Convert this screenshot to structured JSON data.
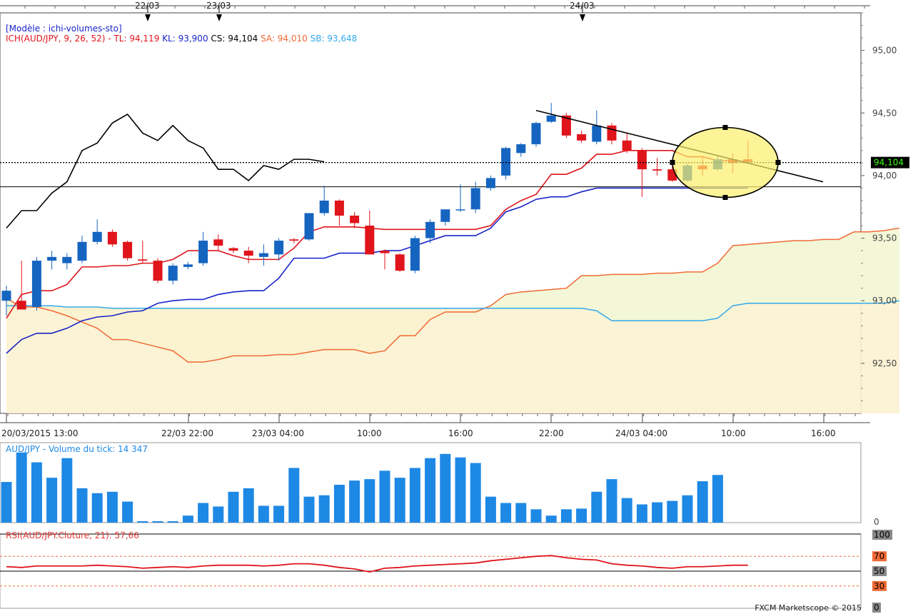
{
  "header": {
    "model": "[Modèle : ichi-volumes-sto]",
    "ich_name": "ICH(AUD/JPY, 9, 26, 52) -",
    "tl": "TL: 94,119",
    "kl": "KL: 93,900",
    "cs": "CS: 94,104",
    "sa": "SA: 94,010",
    "sb": "SB: 93,648"
  },
  "colors": {
    "up_candle": "#1565c0",
    "down_candle": "#e0141b",
    "tenkan": "#e0141b",
    "kijun": "#1a23c8",
    "chikou": "#000000",
    "senkou_a": "#f06a35",
    "senkou_b": "#33aaee",
    "cloud_bull": "#f3f7d7",
    "cloud_bear": "#fbf2d0",
    "volume": "#1e88e5",
    "rsi": "#e0141b",
    "highlight": "#fcef6b"
  },
  "date_markers": [
    "22/03",
    "23/03",
    "24/03"
  ],
  "time_labels": [
    "20/03/2015 13:00",
    "22/03 22:00",
    "23/03 04:00",
    "10:00",
    "16:00",
    "22:00",
    "24/03 04:00",
    "10:00",
    "16:00"
  ],
  "price_axis": [
    "95,00",
    "94,50",
    "94,00",
    "93,50",
    "93,00",
    "92,50"
  ],
  "current_price_label": "94,104",
  "volume_header": "AUD/JPY - Volume du tick: 14 347",
  "volume_axis_zero": "0",
  "rsi_header": "RSI(AUD/JPY.Cloture, 21): 57,66",
  "rsi_axis": [
    "100",
    "70",
    "50",
    "30",
    "0"
  ],
  "brand": "FXCM Marketscope © 2015",
  "chart_data": [
    {
      "type": "candlestick",
      "title": "ICH(AUD/JPY, 9, 26, 52)",
      "ylim": [
        92.1,
        95.3
      ],
      "candles": [
        [
          93.0,
          93.12,
          92.88,
          93.08
        ],
        [
          93.0,
          93.32,
          92.93,
          92.93
        ],
        [
          92.95,
          93.35,
          92.92,
          93.32
        ],
        [
          93.32,
          93.4,
          93.25,
          93.35
        ],
        [
          93.3,
          93.38,
          93.25,
          93.35
        ],
        [
          93.32,
          93.52,
          93.3,
          93.47
        ],
        [
          93.47,
          93.65,
          93.45,
          93.55
        ],
        [
          93.55,
          93.57,
          93.43,
          93.45
        ],
        [
          93.47,
          93.48,
          93.32,
          93.34
        ],
        [
          93.33,
          93.48,
          93.3,
          93.32
        ],
        [
          93.32,
          93.34,
          93.14,
          93.16
        ],
        [
          93.16,
          93.3,
          93.13,
          93.28
        ],
        [
          93.27,
          93.31,
          93.25,
          93.29
        ],
        [
          93.3,
          93.55,
          93.28,
          93.48
        ],
        [
          93.49,
          93.53,
          93.4,
          93.44
        ],
        [
          93.42,
          93.43,
          93.38,
          93.4
        ],
        [
          93.4,
          93.43,
          93.3,
          93.36
        ],
        [
          93.35,
          93.45,
          93.28,
          93.38
        ],
        [
          93.37,
          93.5,
          93.32,
          93.48
        ],
        [
          93.49,
          93.5,
          93.46,
          93.48
        ],
        [
          93.49,
          93.7,
          93.48,
          93.7
        ],
        [
          93.7,
          93.92,
          93.68,
          93.8
        ],
        [
          93.8,
          93.81,
          93.6,
          93.68
        ],
        [
          93.68,
          93.71,
          93.58,
          93.62
        ],
        [
          93.6,
          93.72,
          93.4,
          93.37
        ],
        [
          93.4,
          93.41,
          93.25,
          93.38
        ],
        [
          93.37,
          93.38,
          93.23,
          93.24
        ],
        [
          93.24,
          93.52,
          93.22,
          93.5
        ],
        [
          93.5,
          93.65,
          93.46,
          93.63
        ],
        [
          93.63,
          93.73,
          93.6,
          93.73
        ],
        [
          93.73,
          93.93,
          93.71,
          93.73
        ],
        [
          93.73,
          93.95,
          93.7,
          93.9
        ],
        [
          93.9,
          94.0,
          93.88,
          93.98
        ],
        [
          94.0,
          94.23,
          93.97,
          94.22
        ],
        [
          94.18,
          94.26,
          94.15,
          94.25
        ],
        [
          94.25,
          94.43,
          94.23,
          94.42
        ],
        [
          94.43,
          94.58,
          94.42,
          94.48
        ],
        [
          94.48,
          94.5,
          94.3,
          94.32
        ],
        [
          94.33,
          94.36,
          94.26,
          94.28
        ],
        [
          94.27,
          94.52,
          94.25,
          94.4
        ],
        [
          94.4,
          94.42,
          94.25,
          94.28
        ],
        [
          94.28,
          94.34,
          94.18,
          94.2
        ],
        [
          94.2,
          94.22,
          93.83,
          94.05
        ],
        [
          94.05,
          94.14,
          94.0,
          94.04
        ],
        [
          94.05,
          94.08,
          93.95,
          93.96
        ],
        [
          93.96,
          94.1,
          93.95,
          94.08
        ],
        [
          94.08,
          94.15,
          94.0,
          94.05
        ],
        [
          94.05,
          94.16,
          94.04,
          94.13
        ],
        [
          94.13,
          94.18,
          94.02,
          94.1
        ],
        [
          94.13,
          94.28,
          94.1,
          94.11
        ]
      ],
      "tenkan": [
        92.86,
        93.05,
        93.08,
        93.08,
        93.13,
        93.27,
        93.27,
        93.28,
        93.28,
        93.3,
        93.3,
        93.33,
        93.4,
        93.4,
        93.4,
        93.36,
        93.33,
        93.33,
        93.33,
        93.42,
        93.55,
        93.59,
        93.59,
        93.59,
        93.58,
        93.57,
        93.57,
        93.57,
        93.57,
        93.57,
        93.57,
        93.57,
        93.6,
        93.73,
        93.8,
        93.85,
        94.01,
        94.01,
        94.06,
        94.17,
        94.17,
        94.2,
        94.2,
        94.2,
        94.2,
        94.15,
        94.15,
        94.12,
        94.12,
        94.11
      ],
      "kijun": [
        92.58,
        92.69,
        92.74,
        92.74,
        92.78,
        92.84,
        92.87,
        92.88,
        92.91,
        92.92,
        92.98,
        93.0,
        93.01,
        93.01,
        93.05,
        93.07,
        93.08,
        93.08,
        93.18,
        93.34,
        93.34,
        93.34,
        93.38,
        93.38,
        93.38,
        93.4,
        93.4,
        93.44,
        93.48,
        93.52,
        93.52,
        93.52,
        93.58,
        93.71,
        93.75,
        93.81,
        93.83,
        93.83,
        93.87,
        93.9,
        93.9,
        93.9,
        93.9,
        93.9,
        93.9,
        93.9,
        93.9,
        93.9,
        93.9,
        93.9
      ],
      "chikou": [
        93.58,
        93.72,
        93.72,
        93.86,
        93.95,
        94.2,
        94.26,
        94.42,
        94.49,
        94.34,
        94.28,
        94.4,
        94.28,
        94.22,
        94.05,
        94.05,
        93.96,
        94.08,
        94.05,
        94.13,
        94.13,
        94.11
      ],
      "senkou_a": [
        93.02,
        92.95,
        92.95,
        92.92,
        92.88,
        92.83,
        92.78,
        92.69,
        92.69,
        92.66,
        92.63,
        92.6,
        92.51,
        92.51,
        92.53,
        92.56,
        92.56,
        92.56,
        92.57,
        92.57,
        92.59,
        92.61,
        92.61,
        92.61,
        92.58,
        92.6,
        92.72,
        92.72,
        92.85,
        92.91,
        92.91,
        92.91,
        92.96,
        93.05,
        93.07,
        93.08,
        93.09,
        93.1,
        93.2,
        93.2,
        93.21,
        93.21,
        93.21,
        93.22,
        93.22,
        93.23,
        93.23,
        93.3,
        93.44,
        93.45,
        93.46,
        93.47,
        93.48,
        93.48,
        93.49,
        93.49,
        93.55,
        93.55,
        93.56,
        93.58
      ],
      "senkou_b": [
        92.96,
        92.96,
        92.96,
        92.96,
        92.95,
        92.95,
        92.95,
        92.94,
        92.94,
        92.94,
        92.94,
        92.94,
        92.94,
        92.94,
        92.94,
        92.94,
        92.94,
        92.94,
        92.94,
        92.94,
        92.94,
        92.94,
        92.94,
        92.94,
        92.94,
        92.94,
        92.94,
        92.94,
        92.94,
        92.94,
        92.94,
        92.94,
        92.94,
        92.94,
        92.94,
        92.94,
        92.94,
        92.94,
        92.94,
        92.92,
        92.84,
        92.84,
        92.84,
        92.84,
        92.84,
        92.84,
        92.84,
        92.86,
        92.96,
        92.98,
        92.98,
        92.98,
        92.98,
        92.98,
        92.98,
        92.98,
        92.98,
        92.98,
        92.98,
        93.0
      ],
      "current_price": 94.104,
      "support_level": 93.91
    },
    {
      "type": "bar",
      "title": "AUD/JPY - Volume du tick: 14 347",
      "values": [
        58,
        100,
        86,
        64,
        92,
        49,
        42,
        44,
        30,
        2,
        2,
        2,
        10,
        28,
        23,
        44,
        49,
        24,
        24,
        78,
        37,
        39,
        54,
        60,
        62,
        74,
        64,
        78,
        92,
        98,
        93,
        85,
        37,
        28,
        28,
        19,
        10,
        19,
        20,
        44,
        62,
        35,
        26,
        29,
        31,
        39,
        59,
        68
      ],
      "ylim": [
        0,
        110
      ]
    },
    {
      "type": "line",
      "title": "RSI(AUD/JPY.Cloture, 21)",
      "values": [
        56,
        55,
        57,
        57,
        57,
        57,
        58,
        57,
        56,
        54,
        55,
        56,
        55,
        57,
        58,
        58,
        58,
        57,
        58,
        60,
        60,
        58,
        55,
        53,
        49,
        54,
        55,
        57,
        58,
        59,
        60,
        61,
        64,
        66,
        68,
        70,
        71,
        68,
        66,
        65,
        60,
        58,
        57,
        55,
        54,
        56,
        56,
        57,
        58,
        58
      ],
      "ylim": [
        0,
        100
      ],
      "levels": [
        70,
        50,
        30
      ]
    }
  ]
}
